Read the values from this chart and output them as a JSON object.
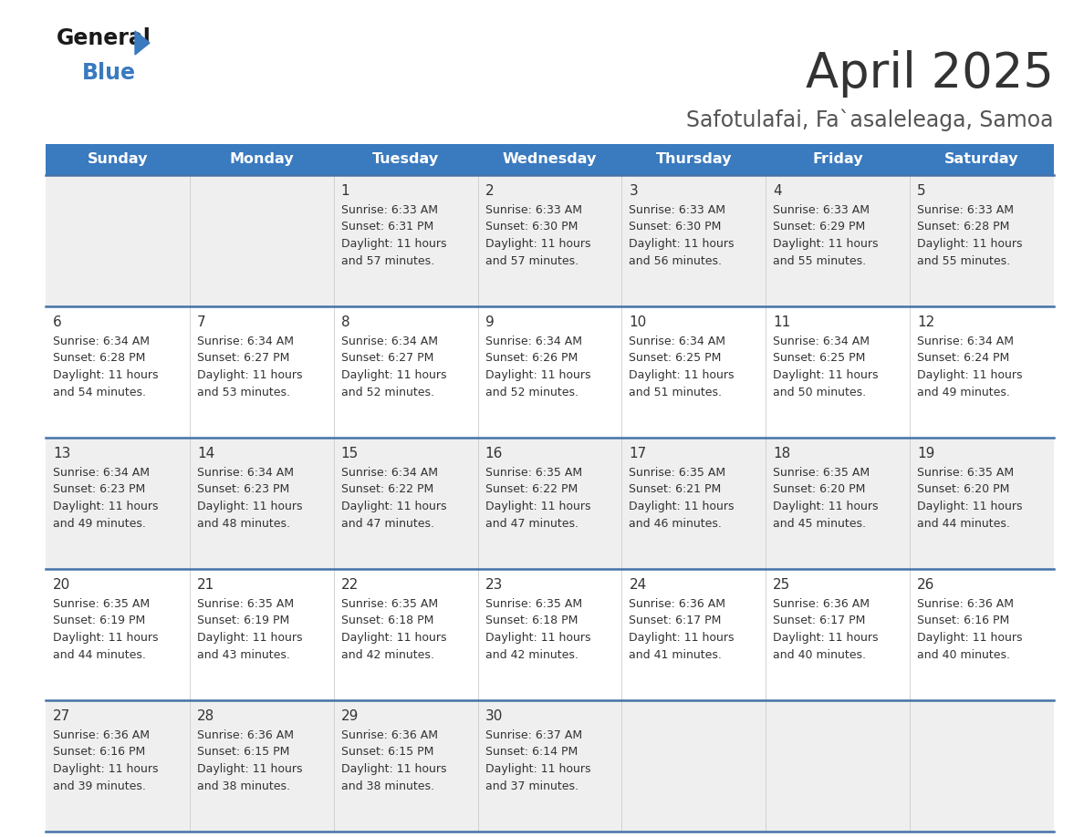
{
  "title": "April 2025",
  "subtitle": "Safotulafai, Fa`asaleleaga, Samoa",
  "header_bg_color": "#3a7abf",
  "header_text_color": "#ffffff",
  "day_names": [
    "Sunday",
    "Monday",
    "Tuesday",
    "Wednesday",
    "Thursday",
    "Friday",
    "Saturday"
  ],
  "row_bg_even": "#efefef",
  "row_bg_odd": "#ffffff",
  "divider_color": "#4472a8",
  "title_color": "#333333",
  "subtitle_color": "#555555",
  "cell_text_color": "#333333",
  "days": [
    {
      "day": 1,
      "col": 2,
      "row": 0,
      "sunrise": "6:33 AM",
      "sunset": "6:31 PM",
      "daylight": "11 hours and 57 minutes"
    },
    {
      "day": 2,
      "col": 3,
      "row": 0,
      "sunrise": "6:33 AM",
      "sunset": "6:30 PM",
      "daylight": "11 hours and 57 minutes"
    },
    {
      "day": 3,
      "col": 4,
      "row": 0,
      "sunrise": "6:33 AM",
      "sunset": "6:30 PM",
      "daylight": "11 hours and 56 minutes"
    },
    {
      "day": 4,
      "col": 5,
      "row": 0,
      "sunrise": "6:33 AM",
      "sunset": "6:29 PM",
      "daylight": "11 hours and 55 minutes"
    },
    {
      "day": 5,
      "col": 6,
      "row": 0,
      "sunrise": "6:33 AM",
      "sunset": "6:28 PM",
      "daylight": "11 hours and 55 minutes"
    },
    {
      "day": 6,
      "col": 0,
      "row": 1,
      "sunrise": "6:34 AM",
      "sunset": "6:28 PM",
      "daylight": "11 hours and 54 minutes"
    },
    {
      "day": 7,
      "col": 1,
      "row": 1,
      "sunrise": "6:34 AM",
      "sunset": "6:27 PM",
      "daylight": "11 hours and 53 minutes"
    },
    {
      "day": 8,
      "col": 2,
      "row": 1,
      "sunrise": "6:34 AM",
      "sunset": "6:27 PM",
      "daylight": "11 hours and 52 minutes"
    },
    {
      "day": 9,
      "col": 3,
      "row": 1,
      "sunrise": "6:34 AM",
      "sunset": "6:26 PM",
      "daylight": "11 hours and 52 minutes"
    },
    {
      "day": 10,
      "col": 4,
      "row": 1,
      "sunrise": "6:34 AM",
      "sunset": "6:25 PM",
      "daylight": "11 hours and 51 minutes"
    },
    {
      "day": 11,
      "col": 5,
      "row": 1,
      "sunrise": "6:34 AM",
      "sunset": "6:25 PM",
      "daylight": "11 hours and 50 minutes"
    },
    {
      "day": 12,
      "col": 6,
      "row": 1,
      "sunrise": "6:34 AM",
      "sunset": "6:24 PM",
      "daylight": "11 hours and 49 minutes"
    },
    {
      "day": 13,
      "col": 0,
      "row": 2,
      "sunrise": "6:34 AM",
      "sunset": "6:23 PM",
      "daylight": "11 hours and 49 minutes"
    },
    {
      "day": 14,
      "col": 1,
      "row": 2,
      "sunrise": "6:34 AM",
      "sunset": "6:23 PM",
      "daylight": "11 hours and 48 minutes"
    },
    {
      "day": 15,
      "col": 2,
      "row": 2,
      "sunrise": "6:34 AM",
      "sunset": "6:22 PM",
      "daylight": "11 hours and 47 minutes"
    },
    {
      "day": 16,
      "col": 3,
      "row": 2,
      "sunrise": "6:35 AM",
      "sunset": "6:22 PM",
      "daylight": "11 hours and 47 minutes"
    },
    {
      "day": 17,
      "col": 4,
      "row": 2,
      "sunrise": "6:35 AM",
      "sunset": "6:21 PM",
      "daylight": "11 hours and 46 minutes"
    },
    {
      "day": 18,
      "col": 5,
      "row": 2,
      "sunrise": "6:35 AM",
      "sunset": "6:20 PM",
      "daylight": "11 hours and 45 minutes"
    },
    {
      "day": 19,
      "col": 6,
      "row": 2,
      "sunrise": "6:35 AM",
      "sunset": "6:20 PM",
      "daylight": "11 hours and 44 minutes"
    },
    {
      "day": 20,
      "col": 0,
      "row": 3,
      "sunrise": "6:35 AM",
      "sunset": "6:19 PM",
      "daylight": "11 hours and 44 minutes"
    },
    {
      "day": 21,
      "col": 1,
      "row": 3,
      "sunrise": "6:35 AM",
      "sunset": "6:19 PM",
      "daylight": "11 hours and 43 minutes"
    },
    {
      "day": 22,
      "col": 2,
      "row": 3,
      "sunrise": "6:35 AM",
      "sunset": "6:18 PM",
      "daylight": "11 hours and 42 minutes"
    },
    {
      "day": 23,
      "col": 3,
      "row": 3,
      "sunrise": "6:35 AM",
      "sunset": "6:18 PM",
      "daylight": "11 hours and 42 minutes"
    },
    {
      "day": 24,
      "col": 4,
      "row": 3,
      "sunrise": "6:36 AM",
      "sunset": "6:17 PM",
      "daylight": "11 hours and 41 minutes"
    },
    {
      "day": 25,
      "col": 5,
      "row": 3,
      "sunrise": "6:36 AM",
      "sunset": "6:17 PM",
      "daylight": "11 hours and 40 minutes"
    },
    {
      "day": 26,
      "col": 6,
      "row": 3,
      "sunrise": "6:36 AM",
      "sunset": "6:16 PM",
      "daylight": "11 hours and 40 minutes"
    },
    {
      "day": 27,
      "col": 0,
      "row": 4,
      "sunrise": "6:36 AM",
      "sunset": "6:16 PM",
      "daylight": "11 hours and 39 minutes"
    },
    {
      "day": 28,
      "col": 1,
      "row": 4,
      "sunrise": "6:36 AM",
      "sunset": "6:15 PM",
      "daylight": "11 hours and 38 minutes"
    },
    {
      "day": 29,
      "col": 2,
      "row": 4,
      "sunrise": "6:36 AM",
      "sunset": "6:15 PM",
      "daylight": "11 hours and 38 minutes"
    },
    {
      "day": 30,
      "col": 3,
      "row": 4,
      "sunrise": "6:37 AM",
      "sunset": "6:14 PM",
      "daylight": "11 hours and 37 minutes"
    }
  ]
}
